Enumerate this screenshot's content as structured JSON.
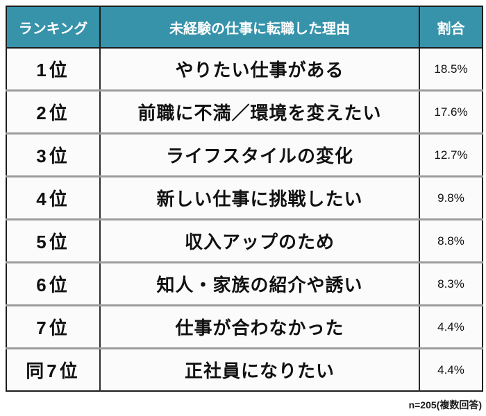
{
  "table": {
    "headers": {
      "rank": "ランキング",
      "reason": "未経験の仕事に転職した理由",
      "share": "割合"
    },
    "rows": [
      {
        "rank": "1位",
        "reason": "やりたい仕事がある",
        "share": "18.5%"
      },
      {
        "rank": "2位",
        "reason": "前職に不満／環境を変えたい",
        "share": "17.6%"
      },
      {
        "rank": "3位",
        "reason": "ライフスタイルの変化",
        "share": "12.7%"
      },
      {
        "rank": "4位",
        "reason": "新しい仕事に挑戦したい",
        "share": "9.8%"
      },
      {
        "rank": "5位",
        "reason": "収入アップのため",
        "share": "8.8%"
      },
      {
        "rank": "6位",
        "reason": "知人・家族の紹介や誘い",
        "share": "8.3%"
      },
      {
        "rank": "7位",
        "reason": "仕事が合わなかった",
        "share": "4.4%"
      },
      {
        "rank": "同7位",
        "reason": "正社員になりたい",
        "share": "4.4%"
      }
    ],
    "footnote": "n=205(複数回答)"
  },
  "colors": {
    "header_bg": "#3793aa",
    "header_text": "#ffffff",
    "cell_bg": "#fbfbfb",
    "grid_horizontal": "#9c9c9c",
    "grid_vertical": "#2b2b2b",
    "outer_border": "#1c1c1c",
    "body_text": "#111111"
  },
  "chart_data": {
    "type": "table",
    "title": "未経験の仕事に転職した理由",
    "columns": [
      "ランキング",
      "未経験の仕事に転職した理由",
      "割合"
    ],
    "rows": [
      [
        "1位",
        "やりたい仕事がある",
        "18.5%"
      ],
      [
        "2位",
        "前職に不満／環境を変えたい",
        "17.6%"
      ],
      [
        "3位",
        "ライフスタイルの変化",
        "12.7%"
      ],
      [
        "4位",
        "新しい仕事に挑戦したい",
        "9.8%"
      ],
      [
        "5位",
        "収入アップのため",
        "8.8%"
      ],
      [
        "6位",
        "知人・家族の紹介や誘い",
        "8.3%"
      ],
      [
        "7位",
        "仕事が合わなかった",
        "4.4%"
      ],
      [
        "同7位",
        "正社員になりたい",
        "4.4%"
      ]
    ],
    "values_percent": [
      18.5,
      17.6,
      12.7,
      9.8,
      8.8,
      8.3,
      4.4,
      4.4
    ],
    "note": "n=205(複数回答)"
  }
}
